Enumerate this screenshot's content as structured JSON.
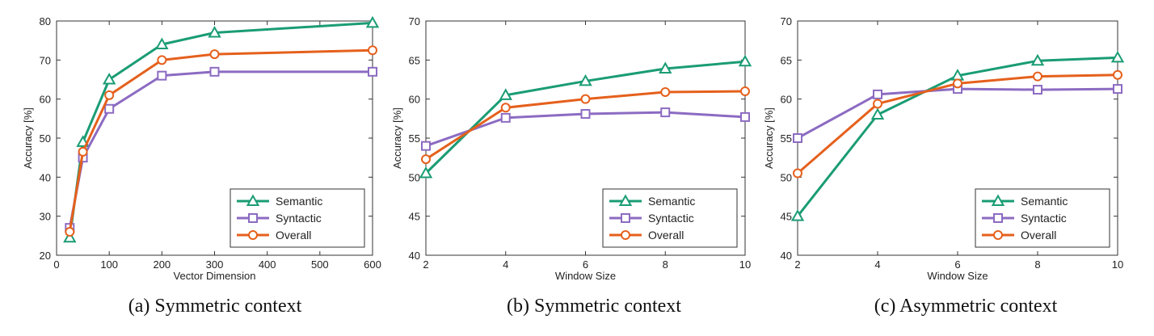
{
  "captions": [
    "(a)  Symmetric context",
    "(b)  Symmetric context",
    "(c)  Asymmetric context"
  ],
  "colors": {
    "Semantic": "#1a9c74",
    "Syntactic": "#8c6bc2",
    "Overall": "#e5601c"
  },
  "markers": {
    "Semantic": "triangle",
    "Syntactic": "square",
    "Overall": "circle"
  },
  "chart_data": [
    {
      "type": "line",
      "title": "",
      "xlabel": "Vector Dimension",
      "ylabel": "Accuracy [%]",
      "xlim": [
        0,
        600
      ],
      "ylim": [
        20,
        80
      ],
      "xticks": [
        0,
        100,
        200,
        300,
        400,
        500,
        600
      ],
      "yticks": [
        20,
        30,
        40,
        50,
        60,
        70,
        80
      ],
      "grid": false,
      "legend_position": "bottom-right",
      "x": [
        25,
        50,
        100,
        200,
        300,
        600
      ],
      "series": [
        {
          "name": "Semantic",
          "values": [
            24.5,
            49,
            65,
            74,
            77,
            79.5
          ]
        },
        {
          "name": "Syntactic",
          "values": [
            27,
            45,
            57.5,
            66,
            67,
            67
          ]
        },
        {
          "name": "Overall",
          "values": [
            26,
            46.5,
            61,
            70,
            71.5,
            72.5
          ]
        }
      ]
    },
    {
      "type": "line",
      "title": "",
      "xlabel": "Window Size",
      "ylabel": "Accuracy [%]",
      "xlim": [
        2,
        10
      ],
      "ylim": [
        40,
        70
      ],
      "xticks": [
        2,
        4,
        6,
        8,
        10
      ],
      "yticks": [
        40,
        45,
        50,
        55,
        60,
        65,
        70
      ],
      "grid": false,
      "legend_position": "bottom-right",
      "x": [
        2,
        4,
        6,
        8,
        10
      ],
      "series": [
        {
          "name": "Semantic",
          "values": [
            50.5,
            60.5,
            62.3,
            63.9,
            64.8
          ]
        },
        {
          "name": "Syntactic",
          "values": [
            54,
            57.6,
            58.1,
            58.3,
            57.7
          ]
        },
        {
          "name": "Overall",
          "values": [
            52.3,
            58.9,
            60,
            60.9,
            61
          ]
        }
      ]
    },
    {
      "type": "line",
      "title": "",
      "xlabel": "Window Size",
      "ylabel": "Accuracy [%]",
      "xlim": [
        2,
        10
      ],
      "ylim": [
        40,
        70
      ],
      "xticks": [
        2,
        4,
        6,
        8,
        10
      ],
      "yticks": [
        40,
        45,
        50,
        55,
        60,
        65,
        70
      ],
      "grid": false,
      "legend_position": "bottom-right",
      "x": [
        2,
        4,
        6,
        8,
        10
      ],
      "series": [
        {
          "name": "Semantic",
          "values": [
            45,
            58,
            63,
            64.9,
            65.3
          ]
        },
        {
          "name": "Syntactic",
          "values": [
            55,
            60.6,
            61.3,
            61.2,
            61.3
          ]
        },
        {
          "name": "Overall",
          "values": [
            50.5,
            59.4,
            62,
            62.9,
            63.1
          ]
        }
      ]
    }
  ]
}
